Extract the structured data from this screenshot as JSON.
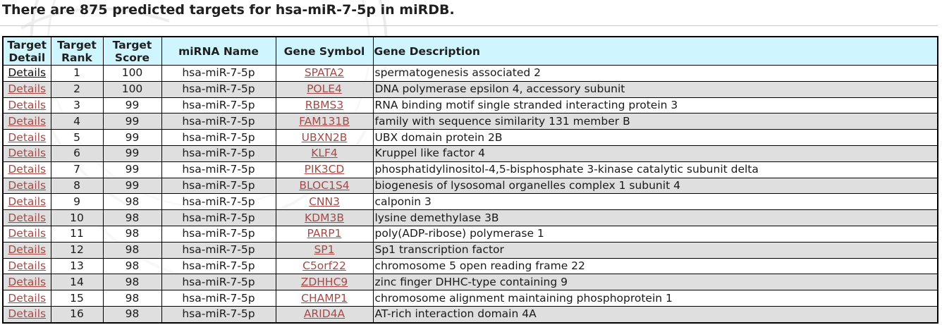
{
  "title": "There are 875 predicted targets for hsa-miR-7-5p in miRDB.",
  "headers": {
    "detail": [
      "Target",
      "Detail"
    ],
    "rank": [
      "Target",
      "Rank"
    ],
    "score": [
      "Target",
      "Score"
    ],
    "mirna": "miRNA Name",
    "gene": "Gene Symbol",
    "description": "Gene Description"
  },
  "rows": [
    {
      "detail": "Details",
      "rank": "1",
      "score": "100",
      "mirna": "hsa-miR-7-5p",
      "gene": "SPATA2",
      "description": "spermatogenesis associated 2"
    },
    {
      "detail": "Details",
      "rank": "2",
      "score": "100",
      "mirna": "hsa-miR-7-5p",
      "gene": "POLE4",
      "description": "DNA polymerase epsilon 4, accessory subunit"
    },
    {
      "detail": "Details",
      "rank": "3",
      "score": "99",
      "mirna": "hsa-miR-7-5p",
      "gene": "RBMS3",
      "description": "RNA binding motif single stranded interacting protein 3"
    },
    {
      "detail": "Details",
      "rank": "4",
      "score": "99",
      "mirna": "hsa-miR-7-5p",
      "gene": "FAM131B",
      "description": "family with sequence similarity 131 member B"
    },
    {
      "detail": "Details",
      "rank": "5",
      "score": "99",
      "mirna": "hsa-miR-7-5p",
      "gene": "UBXN2B",
      "description": "UBX domain protein 2B"
    },
    {
      "detail": "Details",
      "rank": "6",
      "score": "99",
      "mirna": "hsa-miR-7-5p",
      "gene": "KLF4",
      "description": "Kruppel like factor 4"
    },
    {
      "detail": "Details",
      "rank": "7",
      "score": "99",
      "mirna": "hsa-miR-7-5p",
      "gene": "PIK3CD",
      "description": "phosphatidylinositol-4,5-bisphosphate 3-kinase catalytic subunit delta"
    },
    {
      "detail": "Details",
      "rank": "8",
      "score": "99",
      "mirna": "hsa-miR-7-5p",
      "gene": "BLOC1S4",
      "description": "biogenesis of lysosomal organelles complex 1 subunit 4"
    },
    {
      "detail": "Details",
      "rank": "9",
      "score": "98",
      "mirna": "hsa-miR-7-5p",
      "gene": "CNN3",
      "description": "calponin 3"
    },
    {
      "detail": "Details",
      "rank": "10",
      "score": "98",
      "mirna": "hsa-miR-7-5p",
      "gene": "KDM3B",
      "description": "lysine demethylase 3B"
    },
    {
      "detail": "Details",
      "rank": "11",
      "score": "98",
      "mirna": "hsa-miR-7-5p",
      "gene": "PARP1",
      "description": "poly(ADP-ribose) polymerase 1"
    },
    {
      "detail": "Details",
      "rank": "12",
      "score": "98",
      "mirna": "hsa-miR-7-5p",
      "gene": "SP1",
      "description": "Sp1 transcription factor"
    },
    {
      "detail": "Details",
      "rank": "13",
      "score": "98",
      "mirna": "hsa-miR-7-5p",
      "gene": "C5orf22",
      "description": "chromosome 5 open reading frame 22"
    },
    {
      "detail": "Details",
      "rank": "14",
      "score": "98",
      "mirna": "hsa-miR-7-5p",
      "gene": "ZDHHC9",
      "description": "zinc finger DHHC-type containing 9"
    },
    {
      "detail": "Details",
      "rank": "15",
      "score": "98",
      "mirna": "hsa-miR-7-5p",
      "gene": "CHAMP1",
      "description": "chromosome alignment maintaining phosphoprotein 1"
    },
    {
      "detail": "Details",
      "rank": "16",
      "score": "98",
      "mirna": "hsa-miR-7-5p",
      "gene": "ARID4A",
      "description": "AT-rich interaction domain 4A"
    }
  ],
  "colors": {
    "header_bg": "#cff6fe",
    "stripe_bg": "#dfdfdf",
    "link": "#a44b48"
  }
}
